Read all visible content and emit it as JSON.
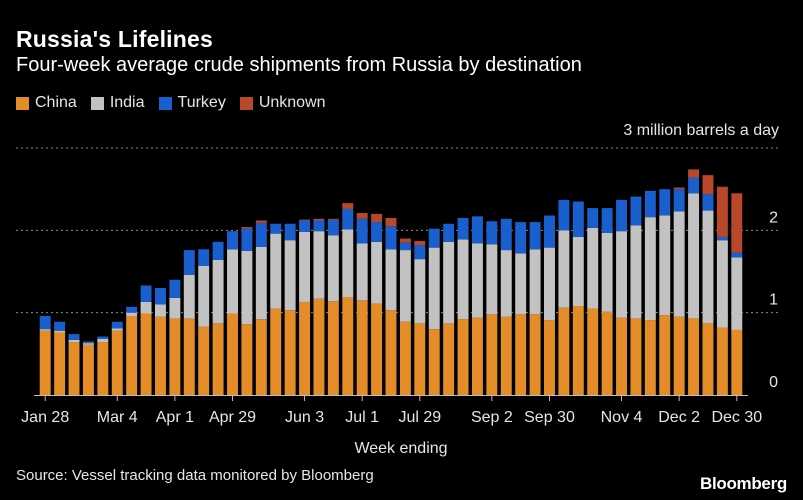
{
  "header": {
    "title": "Russia's Lifelines",
    "subtitle": "Four-week average crude shipments from Russia by destination"
  },
  "footer": {
    "source": "Source: Vessel tracking data monitored by Bloomberg",
    "logo": "Bloomberg"
  },
  "colors": {
    "China": "#e48c27",
    "India": "#c2c2c2",
    "Turkey": "#1a5fce",
    "Unknown": "#b9472a",
    "grid": "#8a8a8a",
    "text": "#e6e6e6"
  },
  "chart_data": {
    "type": "bar",
    "stacked": true,
    "title": "Russia's Lifelines",
    "subtitle": "Four-week average crude shipments from Russia by destination",
    "xlabel": "Week ending",
    "ylabel": "",
    "unit_label": "3 million barrels a day",
    "ylim": [
      0,
      3
    ],
    "yticks": [
      0,
      1,
      2,
      3
    ],
    "ytick_labels": [
      "0",
      "1",
      "2",
      ""
    ],
    "grid": true,
    "legend_placement": "top-left",
    "xtick_labels": [
      {
        "label": "Jan 28",
        "index": 0
      },
      {
        "label": "Mar 4",
        "index": 5
      },
      {
        "label": "Apr 1",
        "index": 9
      },
      {
        "label": "Apr 29",
        "index": 13
      },
      {
        "label": "Jun 3",
        "index": 18
      },
      {
        "label": "Jul 1",
        "index": 22
      },
      {
        "label": "Jul 29",
        "index": 26
      },
      {
        "label": "Sep 2",
        "index": 31
      },
      {
        "label": "Sep 30",
        "index": 35
      },
      {
        "label": "Nov 4",
        "index": 40
      },
      {
        "label": "Dec 2",
        "index": 44
      },
      {
        "label": "Dec 30",
        "index": 48
      }
    ],
    "categories": [
      "Jan 28",
      "Feb 4",
      "Feb 11",
      "Feb 18",
      "Feb 25",
      "Mar 4",
      "Mar 11",
      "Mar 18",
      "Mar 25",
      "Apr 1",
      "Apr 8",
      "Apr 15",
      "Apr 22",
      "Apr 29",
      "May 6",
      "May 13",
      "May 20",
      "May 27",
      "Jun 3",
      "Jun 10",
      "Jun 17",
      "Jun 24",
      "Jul 1",
      "Jul 8",
      "Jul 15",
      "Jul 22",
      "Jul 29",
      "Aug 5",
      "Aug 12",
      "Aug 19",
      "Aug 26",
      "Sep 2",
      "Sep 9",
      "Sep 16",
      "Sep 23",
      "Sep 30",
      "Oct 7",
      "Oct 14",
      "Oct 21",
      "Oct 28",
      "Nov 4",
      "Nov 11",
      "Nov 18",
      "Nov 25",
      "Dec 2",
      "Dec 9",
      "Dec 16",
      "Dec 23",
      "Dec 30"
    ],
    "series": [
      {
        "name": "China",
        "values": [
          0.78,
          0.76,
          0.64,
          0.61,
          0.64,
          0.78,
          0.96,
          0.99,
          0.95,
          0.93,
          0.93,
          0.83,
          0.87,
          0.99,
          0.86,
          0.92,
          1.05,
          1.03,
          1.13,
          1.17,
          1.14,
          1.19,
          1.15,
          1.11,
          1.03,
          0.89,
          0.87,
          0.8,
          0.87,
          0.92,
          0.94,
          0.98,
          0.95,
          0.98,
          0.98,
          0.91,
          1.06,
          1.08,
          1.05,
          1.01,
          0.94,
          0.93,
          0.91,
          0.97,
          0.95,
          0.93,
          0.87,
          0.82,
          0.79
        ]
      },
      {
        "name": "India",
        "values": [
          0.02,
          0.02,
          0.03,
          0.02,
          0.04,
          0.03,
          0.04,
          0.14,
          0.15,
          0.25,
          0.53,
          0.74,
          0.77,
          0.78,
          0.89,
          0.88,
          0.91,
          0.85,
          0.85,
          0.82,
          0.8,
          0.82,
          0.69,
          0.75,
          0.74,
          0.87,
          0.78,
          0.99,
          0.99,
          0.97,
          0.9,
          0.85,
          0.81,
          0.74,
          0.79,
          0.88,
          0.94,
          0.84,
          0.98,
          0.96,
          1.05,
          1.13,
          1.25,
          1.21,
          1.28,
          1.52,
          1.37,
          1.06,
          0.88
        ]
      },
      {
        "name": "Turkey",
        "values": [
          0.16,
          0.11,
          0.07,
          0.02,
          0.03,
          0.08,
          0.07,
          0.2,
          0.2,
          0.22,
          0.3,
          0.2,
          0.22,
          0.22,
          0.27,
          0.29,
          0.12,
          0.2,
          0.14,
          0.13,
          0.19,
          0.25,
          0.3,
          0.24,
          0.28,
          0.09,
          0.17,
          0.23,
          0.22,
          0.26,
          0.33,
          0.28,
          0.38,
          0.38,
          0.33,
          0.39,
          0.37,
          0.43,
          0.24,
          0.3,
          0.38,
          0.35,
          0.32,
          0.32,
          0.27,
          0.19,
          0.2,
          0.04,
          0.06
        ]
      },
      {
        "name": "Unknown",
        "values": [
          0,
          0,
          0,
          0,
          0,
          0,
          0,
          0,
          0,
          0,
          0,
          0,
          0,
          0,
          0.02,
          0.03,
          0,
          0,
          0.01,
          0.02,
          0.01,
          0.07,
          0.07,
          0.1,
          0.1,
          0.05,
          0.05,
          0,
          0,
          0,
          0,
          0,
          0,
          0,
          0,
          0,
          0,
          0,
          0,
          0,
          0,
          0,
          0,
          0,
          0.02,
          0.1,
          0.23,
          0.61,
          0.72
        ]
      }
    ]
  }
}
